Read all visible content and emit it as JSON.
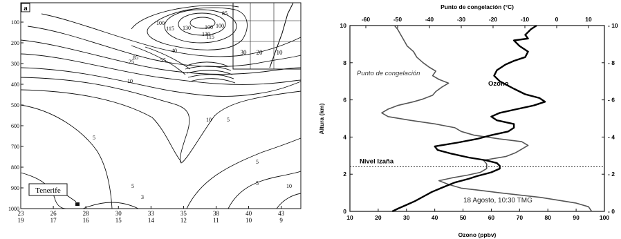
{
  "chart_data": [
    {
      "type": "contour",
      "panel_label": "a",
      "pressure_levels": [
        "100",
        "200",
        "300",
        "400",
        "500",
        "600",
        "700",
        "800",
        "900",
        "1000"
      ],
      "lat_ticks": [
        "23",
        "26",
        "28",
        "30",
        "33",
        "35",
        "38",
        "40",
        "43"
      ],
      "lon_ticks": [
        "19",
        "17",
        "16",
        "15",
        "14",
        "12",
        "11",
        "10",
        "9"
      ],
      "inset_ticks": [
        "30",
        "20",
        "10"
      ],
      "station_label": "Tenerife",
      "contour_labels": [
        {
          "text": "100"
        },
        {
          "text": "115"
        },
        {
          "text": "130"
        },
        {
          "text": "100"
        },
        {
          "text": "85"
        },
        {
          "text": "115"
        },
        {
          "text": "100"
        },
        {
          "text": "130"
        },
        {
          "text": "85"
        },
        {
          "text": "55"
        },
        {
          "text": "40"
        },
        {
          "text": "25"
        },
        {
          "text": "10"
        },
        {
          "text": "10"
        },
        {
          "text": "5"
        },
        {
          "text": "5"
        },
        {
          "text": "5"
        },
        {
          "text": "5"
        },
        {
          "text": "10"
        },
        {
          "text": "5"
        },
        {
          "text": "3"
        }
      ]
    },
    {
      "type": "line",
      "top_axis_label": "Punto de congelación (°C)",
      "xlabel": "Ozono (ppbv)",
      "ylabel": "Altura (km)",
      "xlim": [
        10,
        100
      ],
      "ylim": [
        0,
        10
      ],
      "x_ticks": [
        10,
        20,
        30,
        40,
        50,
        60,
        70,
        80,
        90,
        100
      ],
      "y_ticks": [
        0,
        2,
        4,
        6,
        8,
        10
      ],
      "top_ticks": [
        -60,
        -50,
        -40,
        -30,
        -20,
        -10,
        0,
        10
      ],
      "top_range": [
        -65,
        15
      ],
      "annotation": "18 Agosto, 10:30 TMG",
      "reference_line": {
        "label": "Nivel Izaña",
        "y": 2.4
      },
      "series": [
        {
          "name": "Ozono",
          "points": [
            [
              25,
              0.0
            ],
            [
              27,
              0.15
            ],
            [
              30,
              0.35
            ],
            [
              33,
              0.55
            ],
            [
              36,
              0.8
            ],
            [
              39,
              1.05
            ],
            [
              43,
              1.3
            ],
            [
              47,
              1.55
            ],
            [
              52,
              1.75
            ],
            [
              55,
              1.9
            ],
            [
              60,
              2.1
            ],
            [
              63,
              2.3
            ],
            [
              63,
              2.45
            ],
            [
              62,
              2.6
            ],
            [
              58,
              2.75
            ],
            [
              52,
              2.9
            ],
            [
              46,
              3.1
            ],
            [
              41,
              3.3
            ],
            [
              40,
              3.5
            ],
            [
              48,
              3.7
            ],
            [
              55,
              3.9
            ],
            [
              60,
              4.1
            ],
            [
              66,
              4.3
            ],
            [
              68,
              4.5
            ],
            [
              68,
              4.7
            ],
            [
              62,
              4.9
            ],
            [
              60,
              5.1
            ],
            [
              63,
              5.3
            ],
            [
              69,
              5.5
            ],
            [
              75,
              5.7
            ],
            [
              79,
              5.9
            ],
            [
              77,
              6.1
            ],
            [
              72,
              6.3
            ],
            [
              68,
              6.6
            ],
            [
              63,
              7.0
            ],
            [
              61,
              7.3
            ],
            [
              62,
              7.6
            ],
            [
              65,
              7.9
            ],
            [
              68,
              8.1
            ],
            [
              72,
              8.3
            ],
            [
              73,
              8.6
            ],
            [
              70,
              8.9
            ],
            [
              68,
              9.2
            ],
            [
              73,
              9.3
            ],
            [
              72,
              9.5
            ],
            [
              74,
              9.8
            ],
            [
              76,
              10.0
            ]
          ]
        },
        {
          "name": "Punto de congelación",
          "points": [
            [
              11,
              0.0
            ],
            [
              10,
              0.25
            ],
            [
              6,
              0.45
            ],
            [
              -5,
              0.75
            ],
            [
              -18,
              1.0
            ],
            [
              -25,
              1.15
            ],
            [
              -30,
              1.25
            ],
            [
              -34,
              1.45
            ],
            [
              -37,
              1.65
            ],
            [
              -33,
              1.8
            ],
            [
              -28,
              1.95
            ],
            [
              -24,
              2.1
            ],
            [
              -22,
              2.3
            ],
            [
              -22,
              2.55
            ],
            [
              -23,
              2.75
            ],
            [
              -16,
              2.95
            ],
            [
              -13,
              3.15
            ],
            [
              -11,
              3.35
            ],
            [
              -9,
              3.55
            ],
            [
              -11,
              3.75
            ],
            [
              -18,
              3.9
            ],
            [
              -26,
              4.1
            ],
            [
              -30,
              4.3
            ],
            [
              -32,
              4.5
            ],
            [
              -38,
              4.7
            ],
            [
              -46,
              4.9
            ],
            [
              -53,
              5.1
            ],
            [
              -55,
              5.3
            ],
            [
              -53,
              5.5
            ],
            [
              -50,
              5.7
            ],
            [
              -45,
              5.9
            ],
            [
              -42,
              6.05
            ],
            [
              -39,
              6.25
            ],
            [
              -38,
              6.45
            ],
            [
              -36,
              6.7
            ],
            [
              -34,
              6.9
            ],
            [
              -37,
              7.1
            ],
            [
              -39,
              7.3
            ],
            [
              -38,
              7.55
            ],
            [
              -40,
              7.75
            ],
            [
              -42,
              8.0
            ],
            [
              -44,
              8.3
            ],
            [
              -45,
              8.6
            ],
            [
              -47,
              8.9
            ],
            [
              -48,
              9.2
            ],
            [
              -49,
              9.5
            ],
            [
              -50,
              9.8
            ],
            [
              -51,
              10.0
            ]
          ]
        }
      ]
    }
  ]
}
